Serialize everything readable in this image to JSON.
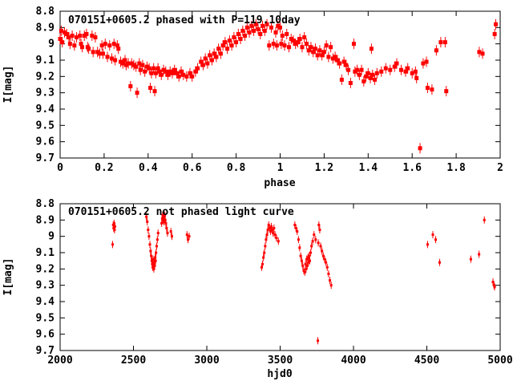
{
  "colors": {
    "marker": "#ff0000",
    "axis": "#000000",
    "background": "#ffffff"
  },
  "chart_data": [
    {
      "type": "scatter",
      "title": "070151+0605.2 phased with P=119.10day",
      "xlabel": "phase",
      "ylabel": "I[mag]",
      "xlim": [
        0,
        2
      ],
      "ylim": [
        8.8,
        9.7
      ],
      "y_inverted_magnitude_axis": true,
      "grid": false,
      "legend": "none",
      "marker": "square",
      "marker_size": 5,
      "error_stem": 4,
      "xticks": [
        [
          0,
          "0"
        ],
        [
          0.2,
          "0.2"
        ],
        [
          0.4,
          "0.4"
        ],
        [
          0.6,
          "0.6"
        ],
        [
          0.8,
          "0.8"
        ],
        [
          1,
          "1"
        ],
        [
          1.2,
          "1.2"
        ],
        [
          1.4,
          "1.4"
        ],
        [
          1.6,
          "1.6"
        ],
        [
          1.8,
          "1.8"
        ],
        [
          2,
          "2"
        ]
      ],
      "yticks": [
        [
          8.8,
          "8.8"
        ],
        [
          8.9,
          "8.9"
        ],
        [
          9,
          "9"
        ],
        [
          9.1,
          "9.1"
        ],
        [
          9.2,
          "9.2"
        ],
        [
          9.3,
          "9.3"
        ],
        [
          9.4,
          "9.4"
        ],
        [
          9.5,
          "9.5"
        ],
        [
          9.6,
          "9.6"
        ],
        [
          9.7,
          "9.7"
        ]
      ],
      "points": [
        [
          0.0,
          8.97
        ],
        [
          0.005,
          8.92
        ],
        [
          0.01,
          8.99
        ],
        [
          0.02,
          8.93
        ],
        [
          0.03,
          8.94
        ],
        [
          0.04,
          8.96
        ],
        [
          0.045,
          9.0
        ],
        [
          0.055,
          8.95
        ],
        [
          0.065,
          9.01
        ],
        [
          0.075,
          8.96
        ],
        [
          0.09,
          8.95
        ],
        [
          0.095,
          9.0
        ],
        [
          0.1,
          9.02
        ],
        [
          0.11,
          8.95
        ],
        [
          0.12,
          8.94
        ],
        [
          0.125,
          9.02
        ],
        [
          0.13,
          9.03
        ],
        [
          0.145,
          8.95
        ],
        [
          0.15,
          9.05
        ],
        [
          0.16,
          8.96
        ],
        [
          0.17,
          9.05
        ],
        [
          0.18,
          9.06
        ],
        [
          0.19,
          9.01
        ],
        [
          0.195,
          9.06
        ],
        [
          0.205,
          9.0
        ],
        [
          0.215,
          9.08
        ],
        [
          0.225,
          9.01
        ],
        [
          0.235,
          9.09
        ],
        [
          0.245,
          9.0
        ],
        [
          0.25,
          9.1
        ],
        [
          0.26,
          9.01
        ],
        [
          0.265,
          9.03
        ],
        [
          0.275,
          9.11
        ],
        [
          0.285,
          9.12
        ],
        [
          0.295,
          9.1
        ],
        [
          0.3,
          9.13
        ],
        [
          0.31,
          9.12
        ],
        [
          0.32,
          9.26
        ],
        [
          0.35,
          9.3
        ],
        [
          0.41,
          9.27
        ],
        [
          0.43,
          9.29
        ],
        [
          0.325,
          9.12
        ],
        [
          0.335,
          9.13
        ],
        [
          0.345,
          9.14
        ],
        [
          0.36,
          9.12
        ],
        [
          0.365,
          9.16
        ],
        [
          0.375,
          9.13
        ],
        [
          0.385,
          9.17
        ],
        [
          0.395,
          9.14
        ],
        [
          0.405,
          9.15
        ],
        [
          0.415,
          9.18
        ],
        [
          0.425,
          9.15
        ],
        [
          0.435,
          9.18
        ],
        [
          0.445,
          9.15
        ],
        [
          0.45,
          9.17
        ],
        [
          0.46,
          9.19
        ],
        [
          0.47,
          9.16
        ],
        [
          0.48,
          9.17
        ],
        [
          0.49,
          9.19
        ],
        [
          0.5,
          9.17
        ],
        [
          0.51,
          9.18
        ],
        [
          0.52,
          9.16
        ],
        [
          0.53,
          9.18
        ],
        [
          0.54,
          9.2
        ],
        [
          0.55,
          9.17
        ],
        [
          0.56,
          9.19
        ],
        [
          0.575,
          9.2
        ],
        [
          0.59,
          9.18
        ],
        [
          0.6,
          9.2
        ],
        [
          0.615,
          9.17
        ],
        [
          0.625,
          9.15
        ],
        [
          0.64,
          9.11
        ],
        [
          0.65,
          9.13
        ],
        [
          0.66,
          9.09
        ],
        [
          0.67,
          9.12
        ],
        [
          0.68,
          9.07
        ],
        [
          0.69,
          9.1
        ],
        [
          0.7,
          9.06
        ],
        [
          0.71,
          9.08
        ],
        [
          0.72,
          9.03
        ],
        [
          0.73,
          9.06
        ],
        [
          0.74,
          9.01
        ],
        [
          0.75,
          8.99
        ],
        [
          0.76,
          9.03
        ],
        [
          0.77,
          8.98
        ],
        [
          0.78,
          9.01
        ],
        [
          0.79,
          8.96
        ],
        [
          0.8,
          8.99
        ],
        [
          0.81,
          8.94
        ],
        [
          0.82,
          8.97
        ],
        [
          0.83,
          8.92
        ],
        [
          0.84,
          8.95
        ],
        [
          0.85,
          8.9
        ],
        [
          0.86,
          8.93
        ],
        [
          0.87,
          8.89
        ],
        [
          0.88,
          8.92
        ],
        [
          0.89,
          8.88
        ],
        [
          0.9,
          8.91
        ],
        [
          0.91,
          8.94
        ],
        [
          0.92,
          8.89
        ],
        [
          0.93,
          8.92
        ],
        [
          0.94,
          8.88
        ],
        [
          0.95,
          9.01
        ],
        [
          0.96,
          8.9
        ],
        [
          0.97,
          9.0
        ],
        [
          0.98,
          8.93
        ],
        [
          0.985,
          9.01
        ],
        [
          0.99,
          8.89
        ],
        [
          1.0,
          8.9
        ],
        [
          1.005,
          9.0
        ],
        [
          1.01,
          8.95
        ],
        [
          1.02,
          9.01
        ],
        [
          1.03,
          8.94
        ],
        [
          1.04,
          9.02
        ],
        [
          1.05,
          8.97
        ],
        [
          1.06,
          8.98
        ],
        [
          1.07,
          9.0
        ],
        [
          1.08,
          8.99
        ],
        [
          1.09,
          8.97
        ],
        [
          1.1,
          9.02
        ],
        [
          1.11,
          8.96
        ],
        [
          1.12,
          9.0
        ],
        [
          1.13,
          9.04
        ],
        [
          1.14,
          9.02
        ],
        [
          1.15,
          9.05
        ],
        [
          1.16,
          9.03
        ],
        [
          1.17,
          9.07
        ],
        [
          1.18,
          9.04
        ],
        [
          1.19,
          9.07
        ],
        [
          1.2,
          9.05
        ],
        [
          1.21,
          9.01
        ],
        [
          1.22,
          9.08
        ],
        [
          1.23,
          9.02
        ],
        [
          1.24,
          9.09
        ],
        [
          1.25,
          9.08
        ],
        [
          1.26,
          9.1
        ],
        [
          1.27,
          9.12
        ],
        [
          1.28,
          9.22
        ],
        [
          1.29,
          9.11
        ],
        [
          1.3,
          9.13
        ],
        [
          1.31,
          9.16
        ],
        [
          1.32,
          9.24
        ],
        [
          1.335,
          9.0
        ],
        [
          1.34,
          9.17
        ],
        [
          1.35,
          9.16
        ],
        [
          1.36,
          9.19
        ],
        [
          1.37,
          9.16
        ],
        [
          1.38,
          9.23
        ],
        [
          1.39,
          9.2
        ],
        [
          1.4,
          9.18
        ],
        [
          1.41,
          9.21
        ],
        [
          1.415,
          9.03
        ],
        [
          1.42,
          9.19
        ],
        [
          1.43,
          9.22
        ],
        [
          1.44,
          9.18
        ],
        [
          1.46,
          9.17
        ],
        [
          1.48,
          9.15
        ],
        [
          1.5,
          9.16
        ],
        [
          1.52,
          9.14
        ],
        [
          1.53,
          9.12
        ],
        [
          1.55,
          9.16
        ],
        [
          1.57,
          9.17
        ],
        [
          1.58,
          9.15
        ],
        [
          1.6,
          9.18
        ],
        [
          1.615,
          9.17
        ],
        [
          1.62,
          9.21
        ],
        [
          1.636,
          9.64
        ],
        [
          1.65,
          9.12
        ],
        [
          1.665,
          9.11
        ],
        [
          1.67,
          9.27
        ],
        [
          1.69,
          9.28
        ],
        [
          1.71,
          9.04
        ],
        [
          1.73,
          8.99
        ],
        [
          1.75,
          8.99
        ],
        [
          1.755,
          9.29
        ],
        [
          1.905,
          9.05
        ],
        [
          1.92,
          9.06
        ],
        [
          1.975,
          8.94
        ],
        [
          1.98,
          8.88
        ]
      ]
    },
    {
      "type": "scatter",
      "title": "070151+0605.2 not phased light curve",
      "xlabel": "hjd0",
      "ylabel": "I[mag]",
      "xlim": [
        2000,
        5000
      ],
      "ylim": [
        8.8,
        9.7
      ],
      "y_inverted_magnitude_axis": true,
      "grid": false,
      "legend": "none",
      "marker": "dot",
      "marker_size": 3,
      "error_stem": 3,
      "xticks": [
        [
          2000,
          "2000"
        ],
        [
          2500,
          "2500"
        ],
        [
          3000,
          "3000"
        ],
        [
          3500,
          "3500"
        ],
        [
          4000,
          "4000"
        ],
        [
          4500,
          "4500"
        ],
        [
          5000,
          "5000"
        ]
      ],
      "yticks": [
        [
          8.8,
          "8.8"
        ],
        [
          8.9,
          "8.9"
        ],
        [
          9,
          "9"
        ],
        [
          9.1,
          "9.1"
        ],
        [
          9.2,
          "9.2"
        ],
        [
          9.3,
          "9.3"
        ],
        [
          9.4,
          "9.4"
        ],
        [
          9.5,
          "9.5"
        ],
        [
          9.6,
          "9.6"
        ],
        [
          9.7,
          "9.7"
        ]
      ],
      "points": [
        [
          2358,
          9.05
        ],
        [
          2362,
          8.93
        ],
        [
          2365,
          8.95
        ],
        [
          2368,
          8.92
        ],
        [
          2371,
          8.96
        ],
        [
          2374,
          8.94
        ],
        [
          2588,
          8.88
        ],
        [
          2594,
          8.91
        ],
        [
          2600,
          8.96
        ],
        [
          2606,
          9.0
        ],
        [
          2612,
          9.05
        ],
        [
          2617,
          9.09
        ],
        [
          2621,
          9.12
        ],
        [
          2625,
          9.15
        ],
        [
          2628,
          9.17
        ],
        [
          2631,
          9.19
        ],
        [
          2634,
          9.14
        ],
        [
          2636,
          9.17
        ],
        [
          2639,
          9.2
        ],
        [
          2642,
          9.16
        ],
        [
          2645,
          9.18
        ],
        [
          2648,
          9.13
        ],
        [
          2651,
          9.15
        ],
        [
          2654,
          9.1
        ],
        [
          2658,
          9.06
        ],
        [
          2663,
          9.02
        ],
        [
          2668,
          8.98
        ],
        [
          2692,
          8.92
        ],
        [
          2696,
          8.89
        ],
        [
          2699,
          8.87
        ],
        [
          2702,
          8.9
        ],
        [
          2705,
          8.88
        ],
        [
          2708,
          8.91
        ],
        [
          2711,
          8.88
        ],
        [
          2714,
          8.87
        ],
        [
          2717,
          8.9
        ],
        [
          2721,
          8.92
        ],
        [
          2726,
          8.95
        ],
        [
          2732,
          8.98
        ],
        [
          2755,
          8.97
        ],
        [
          2762,
          9.0
        ],
        [
          2865,
          8.99
        ],
        [
          2872,
          9.02
        ],
        [
          2880,
          9.0
        ],
        [
          3374,
          9.19
        ],
        [
          3380,
          9.17
        ],
        [
          3386,
          9.13
        ],
        [
          3392,
          9.1
        ],
        [
          3398,
          9.06
        ],
        [
          3404,
          9.02
        ],
        [
          3410,
          8.99
        ],
        [
          3416,
          8.96
        ],
        [
          3422,
          8.93
        ],
        [
          3428,
          8.95
        ],
        [
          3434,
          8.97
        ],
        [
          3440,
          8.94
        ],
        [
          3446,
          8.96
        ],
        [
          3452,
          8.98
        ],
        [
          3458,
          8.95
        ],
        [
          3465,
          8.99
        ],
        [
          3475,
          9.01
        ],
        [
          3488,
          9.03
        ],
        [
          3600,
          8.93
        ],
        [
          3608,
          8.95
        ],
        [
          3616,
          8.97
        ],
        [
          3625,
          9.02
        ],
        [
          3633,
          9.07
        ],
        [
          3640,
          9.12
        ],
        [
          3647,
          9.15
        ],
        [
          3654,
          9.18
        ],
        [
          3661,
          9.21
        ],
        [
          3668,
          9.22
        ],
        [
          3673,
          9.17
        ],
        [
          3677,
          9.2
        ],
        [
          3681,
          9.14
        ],
        [
          3685,
          9.18
        ],
        [
          3689,
          9.13
        ],
        [
          3693,
          9.16
        ],
        [
          3697,
          9.12
        ],
        [
          3702,
          9.15
        ],
        [
          3708,
          9.1
        ],
        [
          3714,
          9.06
        ],
        [
          3722,
          9.03
        ],
        [
          3731,
          8.99
        ],
        [
          3742,
          9.02
        ],
        [
          3757,
          9.64
        ],
        [
          3760,
          9.04
        ],
        [
          3764,
          8.93
        ],
        [
          3770,
          8.96
        ],
        [
          3776,
          9.06
        ],
        [
          3785,
          9.09
        ],
        [
          3794,
          9.12
        ],
        [
          3803,
          9.14
        ],
        [
          3812,
          9.16
        ],
        [
          3821,
          9.19
        ],
        [
          3830,
          9.23
        ],
        [
          3839,
          9.27
        ],
        [
          3848,
          9.3
        ],
        [
          4505,
          9.05
        ],
        [
          4541,
          8.99
        ],
        [
          4560,
          9.02
        ],
        [
          4587,
          9.16
        ],
        [
          4800,
          9.14
        ],
        [
          4856,
          9.11
        ],
        [
          4892,
          8.9
        ],
        [
          4951,
          9.28
        ],
        [
          4958,
          9.3
        ],
        [
          4962,
          9.31
        ]
      ]
    }
  ]
}
